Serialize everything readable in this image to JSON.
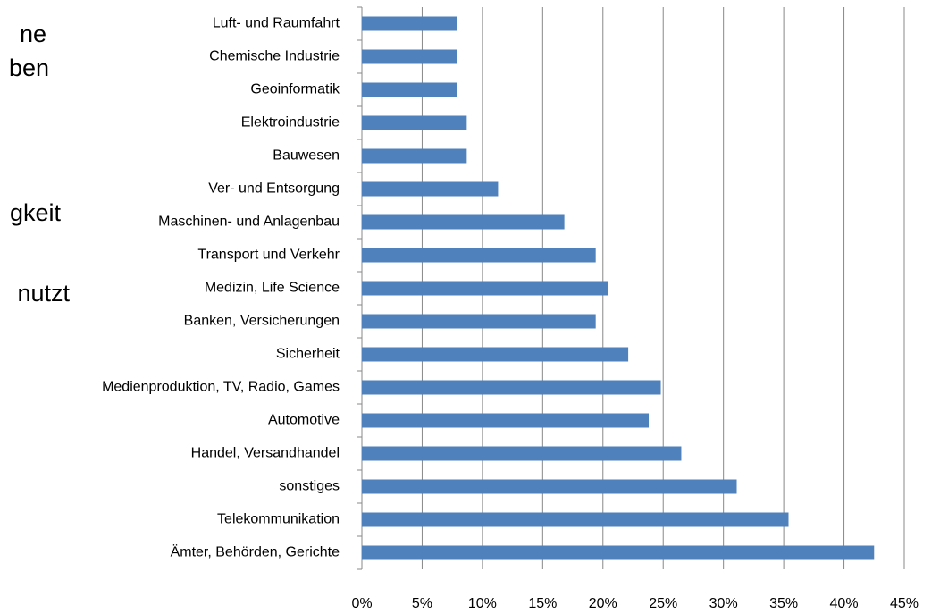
{
  "background_text": [
    "ne",
    "ben",
    "gkeit",
    "nutzt"
  ],
  "chart_data": {
    "type": "bar",
    "orientation": "horizontal",
    "categories": [
      "Luft- und Raumfahrt",
      "Chemische Industrie",
      "Geoinformatik",
      "Elektroindustrie",
      "Bauwesen",
      "Ver- und Entsorgung",
      "Maschinen- und Anlagenbau",
      "Transport und Verkehr",
      "Medizin, Life Science",
      "Banken, Versicherungen",
      "Sicherheit",
      "Medienproduktion, TV,  Radio, Games",
      "Automotive",
      "Handel, Versandhandel",
      "sonstiges",
      "Telekommunikation",
      "Ämter, Behörden, Gerichte"
    ],
    "values": [
      7.9,
      7.9,
      7.9,
      8.7,
      8.7,
      11.3,
      16.8,
      19.4,
      20.4,
      19.4,
      22.1,
      24.8,
      23.8,
      26.5,
      31.1,
      35.4,
      42.5
    ],
    "color": "#4f81bd",
    "xlim": [
      0,
      45
    ],
    "xticks": [
      {
        "value": 0,
        "label": "0%"
      },
      {
        "value": 5,
        "label": "5%"
      },
      {
        "value": 10,
        "label": "10%"
      },
      {
        "value": 15,
        "label": "15%"
      },
      {
        "value": 20,
        "label": "20%"
      },
      {
        "value": 25,
        "label": "25%"
      },
      {
        "value": 30,
        "label": "30%"
      },
      {
        "value": 35,
        "label": "35%"
      },
      {
        "value": 40,
        "label": "40%"
      },
      {
        "value": 45,
        "label": "45%"
      }
    ],
    "grid": true
  }
}
